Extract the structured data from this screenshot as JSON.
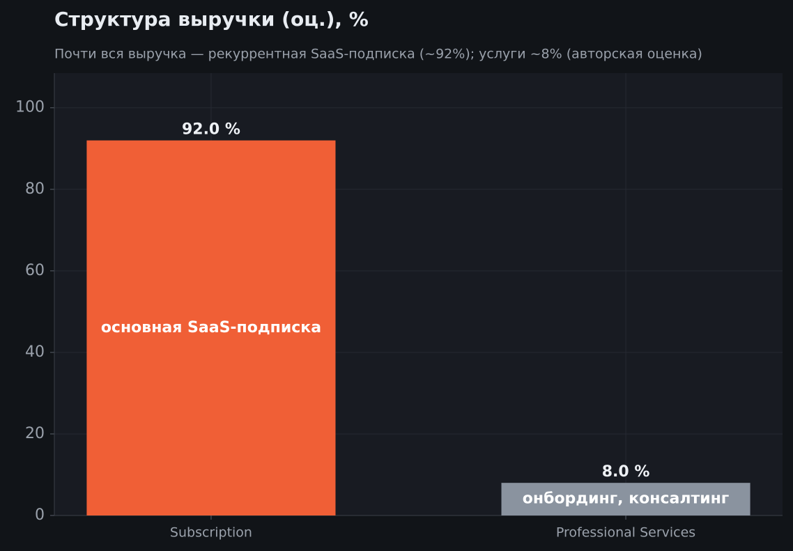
{
  "chart_data": {
    "type": "bar",
    "title": "Структура выручки (оц.), %",
    "subtitle": "Почти вся выручка — рекуррентная SaaS-подписка (~92%); услуги ~8% (авторская оценка)",
    "categories": [
      "Subscription",
      "Professional Services"
    ],
    "values": [
      92,
      8
    ],
    "value_labels": [
      "92.0 %",
      "8.0 %"
    ],
    "bar_labels": [
      "основная SaaS-подписка",
      "онбординг, консалтинг"
    ],
    "colors": [
      "#f05f36",
      "#8a939f"
    ],
    "ylim": [
      0,
      108.5
    ],
    "yticks": [
      0,
      20,
      40,
      60,
      80,
      100
    ],
    "grid": true
  }
}
